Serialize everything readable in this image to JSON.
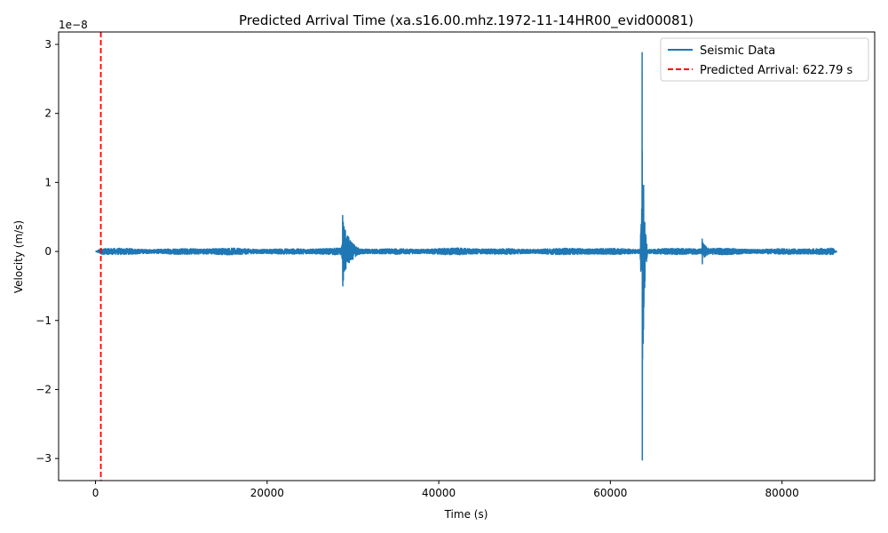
{
  "chart_data": {
    "type": "line",
    "title": "Predicted Arrival Time (xa.s16.00.mhz.1972-11-14HR00_evid00081)",
    "xlabel": "Time (s)",
    "ylabel": "Velocity (m/s)",
    "y_offset_label": "1e−8",
    "y_scale_exponent": -8,
    "xlim": [
      -4300,
      90800
    ],
    "ylim": [
      -3.32e-08,
      3.18e-08
    ],
    "x_ticks": [
      0,
      20000,
      40000,
      60000,
      80000
    ],
    "x_tick_labels": [
      "0",
      "20000",
      "40000",
      "60000",
      "80000"
    ],
    "y_ticks": [
      -3,
      -2,
      -1,
      0,
      1,
      2,
      3
    ],
    "y_tick_labels": [
      "−3",
      "−2",
      "−1",
      "0",
      "1",
      "2",
      "3"
    ],
    "grid": false,
    "legend_position": "top-right",
    "series": [
      {
        "name": "Seismic Data",
        "style": "solid",
        "color": "#1f77b4",
        "x_range": [
          0,
          86400
        ],
        "background_noise_amplitude": 5e-10,
        "events": [
          {
            "x": 28800,
            "peak_positive": 5.2e-09,
            "peak_negative": -5e-09,
            "coda_until": 31500
          },
          {
            "x": 63700,
            "peak_positive": 2.88e-08,
            "peak_negative": -3.02e-08,
            "coda_until": 64300
          },
          {
            "x": 70700,
            "peak_positive": 1.8e-09,
            "peak_negative": -1.8e-09,
            "coda_until": 72500
          }
        ]
      }
    ],
    "markers": [
      {
        "name": "Predicted Arrival: 622.79 s",
        "x": 622.79,
        "style": "dashed",
        "color": "#ff0000"
      }
    ]
  }
}
